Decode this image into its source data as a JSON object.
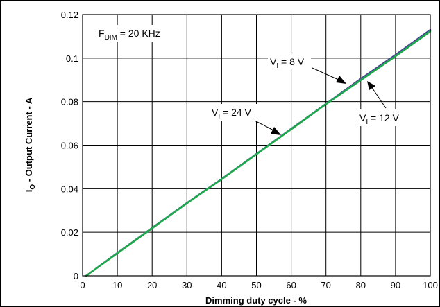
{
  "chart_data": {
    "type": "line",
    "xlabel": "Dimming duty cycle - %",
    "ylabel_main": "I",
    "ylabel_sub": "O",
    "ylabel_rest": " - Output Current - A",
    "xlim": [
      0,
      100
    ],
    "ylim": [
      0,
      0.12
    ],
    "x_ticks": [
      0,
      10,
      20,
      30,
      40,
      50,
      60,
      70,
      80,
      90,
      100
    ],
    "x_tick_labels": [
      "0",
      "10",
      "20",
      "30",
      "40",
      "50",
      "60",
      "70",
      "80",
      "90",
      "100"
    ],
    "y_ticks": [
      0,
      0.02,
      0.04,
      0.06,
      0.08,
      0.1,
      0.12
    ],
    "y_tick_labels": [
      "0",
      "0.02",
      "0.04",
      "0.06",
      "0.08",
      "0.1",
      "0.12"
    ],
    "grid": true,
    "series": [
      {
        "name": "VI = 8 V",
        "color": "#4a3d8f",
        "x": [
          1,
          10,
          20,
          30,
          40,
          50,
          60,
          70,
          80,
          90,
          100
        ],
        "y": [
          0.0,
          0.0105,
          0.022,
          0.0335,
          0.0445,
          0.056,
          0.0675,
          0.079,
          0.0905,
          0.1015,
          0.113
        ]
      },
      {
        "name": "VI = 12 V",
        "color": "#2f8a7a",
        "x": [
          1,
          10,
          20,
          30,
          40,
          50,
          60,
          70,
          80,
          90,
          100
        ],
        "y": [
          0.0,
          0.0105,
          0.022,
          0.0335,
          0.0445,
          0.056,
          0.0675,
          0.079,
          0.09,
          0.101,
          0.1125
        ]
      },
      {
        "name": "VI = 24 V",
        "color": "#1fa84a",
        "x": [
          1,
          10,
          20,
          30,
          40,
          50,
          60,
          70,
          80,
          90,
          100
        ],
        "y": [
          0.0,
          0.0103,
          0.0218,
          0.0333,
          0.0443,
          0.0558,
          0.0673,
          0.0788,
          0.0898,
          0.1008,
          0.1122
        ]
      }
    ],
    "annotations": {
      "fdim": {
        "main": "F",
        "sub": "DIM",
        "rest": " = 20 KHz"
      },
      "v8": {
        "main": "V",
        "sub": "I",
        "rest": " = 8 V"
      },
      "v12": {
        "main": "V",
        "sub": "I",
        "rest": " = 12 V"
      },
      "v24": {
        "main": "V",
        "sub": "I",
        "rest": " = 24 V"
      }
    }
  }
}
